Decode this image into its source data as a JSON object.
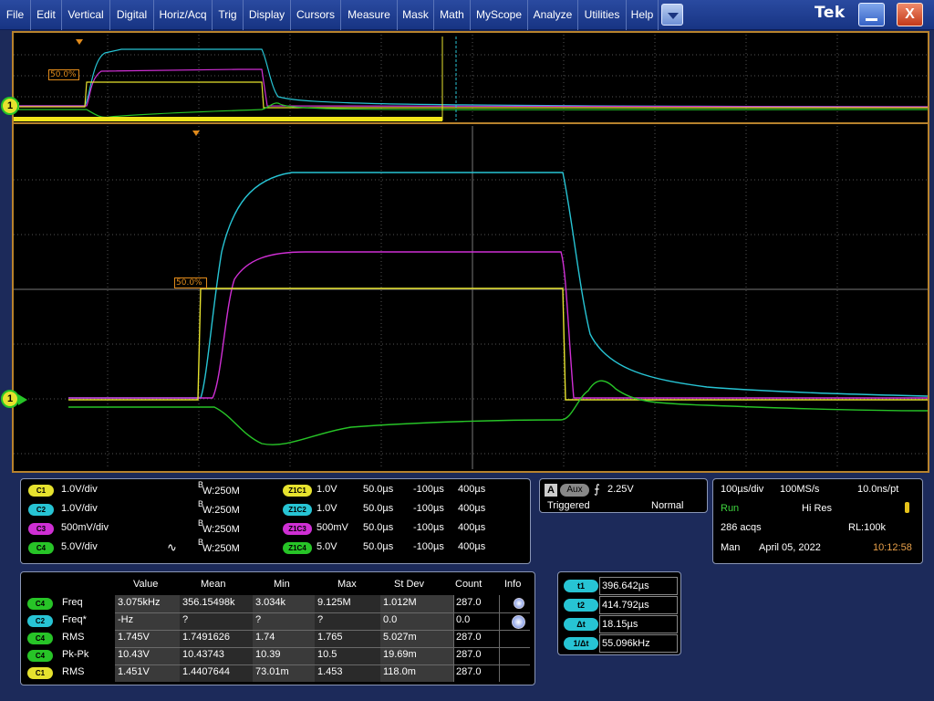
{
  "menu": [
    "File",
    "Edit",
    "Vertical",
    "Digital",
    "Horiz/Acq",
    "Trig",
    "Display",
    "Cursors",
    "Measure",
    "Mask",
    "Math",
    "MyScope",
    "Analyze",
    "Utilities",
    "Help"
  ],
  "brand": "Tek",
  "window": {
    "close_label": "X"
  },
  "display": {
    "overview_ref_label": "50.0%",
    "main_ref_label": "50.0%",
    "ground_marker": "1",
    "trace_colors": {
      "c1": "#e6e22e",
      "c2": "#27c4d4",
      "c3": "#cf2fd4",
      "c4": "#27c427"
    }
  },
  "channels": [
    {
      "chip": "C1",
      "scale": "1.0V/div",
      "bw": "W:250M",
      "zoom_chip": "Z1C1",
      "zoom_scale": "1.0V",
      "zoom_time": "50.0µs",
      "zoom_pos": "-100µs",
      "zoom_len": "400µs"
    },
    {
      "chip": "C2",
      "scale": "1.0V/div",
      "bw": "W:250M",
      "zoom_chip": "Z1C2",
      "zoom_scale": "1.0V",
      "zoom_time": "50.0µs",
      "zoom_pos": "-100µs",
      "zoom_len": "400µs"
    },
    {
      "chip": "C3",
      "scale": "500mV/div",
      "bw": "W:250M",
      "zoom_chip": "Z1C3",
      "zoom_scale": "500mV",
      "zoom_time": "50.0µs",
      "zoom_pos": "-100µs",
      "zoom_len": "400µs"
    },
    {
      "chip": "C4",
      "scale": "5.0V/div",
      "bw": "W:250M",
      "zoom_chip": "Z1C4",
      "zoom_scale": "5.0V",
      "zoom_time": "50.0µs",
      "zoom_pos": "-100µs",
      "zoom_len": "400µs"
    }
  ],
  "bw_prefix": "B",
  "trigger": {
    "source_a": "A",
    "source": "Aux",
    "level": "2.25V",
    "status": "Triggered",
    "mode": "Normal"
  },
  "acquisition": {
    "timebase": "100µs/div",
    "sample_rate": "100MS/s",
    "resolution": "10.0ns/pt",
    "state": "Run",
    "acq_mode": "Hi Res",
    "acqs": "286 acqs",
    "record_length": "RL:100k",
    "man": "Man",
    "date": "April 05, 2022",
    "time": "10:12:58"
  },
  "measurements": {
    "headers": [
      "Value",
      "Mean",
      "Min",
      "Max",
      "St Dev",
      "Count",
      "Info"
    ],
    "rows": [
      {
        "chip": "C4",
        "name": "Freq",
        "value": "3.075kHz",
        "mean": "356.15498k",
        "min": "3.034k",
        "max": "9.125M",
        "stdev": "1.012M",
        "count": "287.0",
        "info": true
      },
      {
        "chip": "C2",
        "name": "Freq*",
        "value": "-Hz",
        "mean": "?",
        "min": "?",
        "max": "?",
        "stdev": "0.0",
        "count": "0.0",
        "info": true
      },
      {
        "chip": "C4",
        "name": "RMS",
        "value": "1.745V",
        "mean": "1.7491626",
        "min": "1.74",
        "max": "1.765",
        "stdev": "5.027m",
        "count": "287.0",
        "info": false
      },
      {
        "chip": "C4",
        "name": "Pk-Pk",
        "value": "10.43V",
        "mean": "10.43743",
        "min": "10.39",
        "max": "10.5",
        "stdev": "19.69m",
        "count": "287.0",
        "info": false
      },
      {
        "chip": "C1",
        "name": "RMS",
        "value": "1.451V",
        "mean": "1.4407644",
        "min": "73.01m",
        "max": "1.453",
        "stdev": "118.0m",
        "count": "287.0",
        "info": false
      }
    ]
  },
  "cursors": [
    {
      "label": "t1",
      "value": "396.642µs"
    },
    {
      "label": "t2",
      "value": "414.792µs"
    },
    {
      "label": "Δt",
      "value": "18.15µs"
    },
    {
      "label": "1/Δt",
      "value": "55.096kHz"
    }
  ]
}
